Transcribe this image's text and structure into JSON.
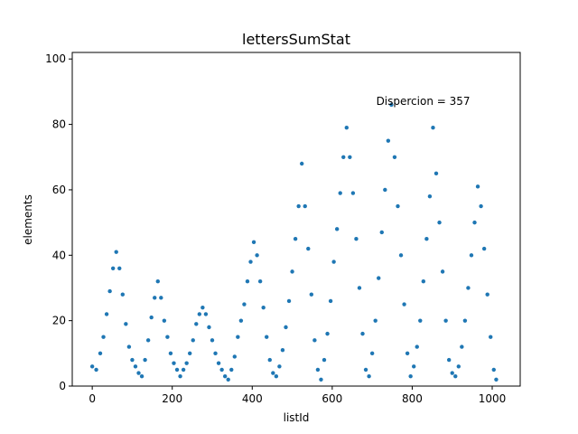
{
  "chart_data": {
    "type": "scatter",
    "title": "lettersSumStat",
    "xlabel": "listId",
    "ylabel": "elements",
    "xlim": [
      -50,
      1070
    ],
    "ylim": [
      0,
      102
    ],
    "xticks": [
      0,
      200,
      400,
      600,
      800,
      1000
    ],
    "yticks": [
      0,
      20,
      40,
      60,
      80,
      100
    ],
    "grid": false,
    "annotation": {
      "text": "Dispercion = 357",
      "x": 710,
      "y": 86
    },
    "point_color": "#1f77b4",
    "series": [
      {
        "x": [
          0,
          10,
          20,
          28,
          36,
          44,
          52,
          60,
          68,
          76,
          84,
          92,
          100,
          108,
          116,
          124,
          132,
          140,
          148,
          156,
          164,
          172,
          180,
          188,
          196,
          204,
          212,
          220,
          228,
          236,
          244,
          252,
          260,
          268,
          276,
          284,
          292,
          300,
          308,
          316,
          324,
          332,
          340,
          348,
          356,
          364,
          372,
          380,
          388,
          396,
          404,
          412,
          420,
          428,
          436,
          444,
          452,
          460,
          468,
          476,
          484,
          492,
          500,
          508,
          516,
          524,
          532,
          540,
          548,
          556,
          564,
          572,
          580,
          588,
          596,
          604,
          612,
          620,
          628,
          636,
          644,
          652,
          660,
          668,
          676,
          684,
          692,
          700,
          708,
          716,
          724,
          732,
          740,
          748,
          756,
          764,
          772,
          780,
          788,
          796,
          804,
          812,
          820,
          828,
          836,
          844,
          852,
          860,
          868,
          876,
          884,
          892,
          900,
          908,
          916,
          924,
          932,
          940,
          948,
          956,
          964,
          972,
          980,
          988,
          996,
          1004,
          1010
        ],
        "y": [
          6,
          5,
          10,
          15,
          22,
          29,
          36,
          41,
          36,
          28,
          19,
          12,
          8,
          6,
          4,
          3,
          8,
          14,
          21,
          27,
          32,
          27,
          20,
          15,
          10,
          7,
          5,
          3,
          5,
          7,
          10,
          14,
          19,
          22,
          24,
          22,
          18,
          14,
          10,
          7,
          5,
          3,
          2,
          5,
          9,
          15,
          20,
          25,
          32,
          38,
          44,
          40,
          32,
          24,
          15,
          8,
          4,
          3,
          6,
          11,
          18,
          26,
          35,
          45,
          55,
          68,
          55,
          42,
          28,
          14,
          5,
          2,
          8,
          16,
          26,
          38,
          48,
          59,
          70,
          79,
          70,
          59,
          45,
          30,
          16,
          5,
          3,
          10,
          20,
          33,
          47,
          60,
          75,
          86,
          70,
          55,
          40,
          25,
          10,
          3,
          6,
          12,
          20,
          32,
          45,
          58,
          79,
          65,
          50,
          35,
          20,
          8,
          4,
          3,
          6,
          12,
          20,
          30,
          40,
          50,
          61,
          55,
          42,
          28,
          15,
          5,
          2
        ]
      }
    ]
  }
}
